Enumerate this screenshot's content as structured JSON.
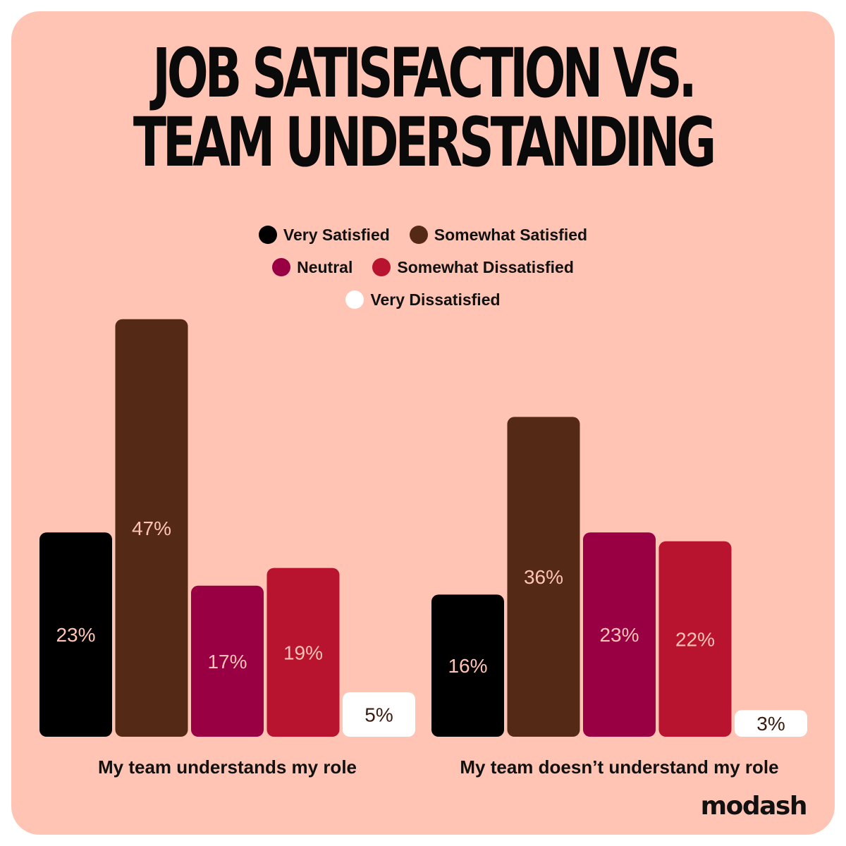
{
  "chart_data": {
    "type": "bar",
    "title_lines": [
      "JOB SATISFACTION VS.",
      "TEAM UNDERSTANDING"
    ],
    "categories": [
      "My team understands my role",
      "My team doesn’t understand my role"
    ],
    "series": [
      {
        "name": "Very Satisfied",
        "color": "#000000",
        "label_color": "#ffc4b3",
        "values": [
          23,
          16
        ]
      },
      {
        "name": "Somewhat Satisfied",
        "color": "#542915",
        "label_color": "#ffc4b3",
        "values": [
          47,
          36
        ]
      },
      {
        "name": "Neutral",
        "color": "#990044",
        "label_color": "#ffc4b3",
        "values": [
          17,
          23
        ]
      },
      {
        "name": "Somewhat Dissatisfied",
        "color": "#b8132f",
        "label_color": "#ffc4b3",
        "values": [
          19,
          22
        ]
      },
      {
        "name": "Very Dissatisfied",
        "color": "#ffffff",
        "label_color": "#3a1c10",
        "values": [
          5,
          3
        ]
      }
    ],
    "value_suffix": "%",
    "legend_position": "top-center",
    "grid": false
  },
  "legend_rows": [
    [
      {
        "name": "Very Satisfied",
        "color": "#000000"
      },
      {
        "name": "Somewhat Satisfied",
        "color": "#542915"
      }
    ],
    [
      {
        "name": "Neutral",
        "color": "#990044"
      },
      {
        "name": "Somewhat Dissatisfied",
        "color": "#b8132f"
      }
    ],
    [
      {
        "name": "Very Dissatisfied",
        "color": "#ffffff"
      }
    ]
  ],
  "brand": {
    "logo_text": "modash"
  },
  "colors": {
    "background": "#ffc4b3",
    "text": "#111111"
  }
}
